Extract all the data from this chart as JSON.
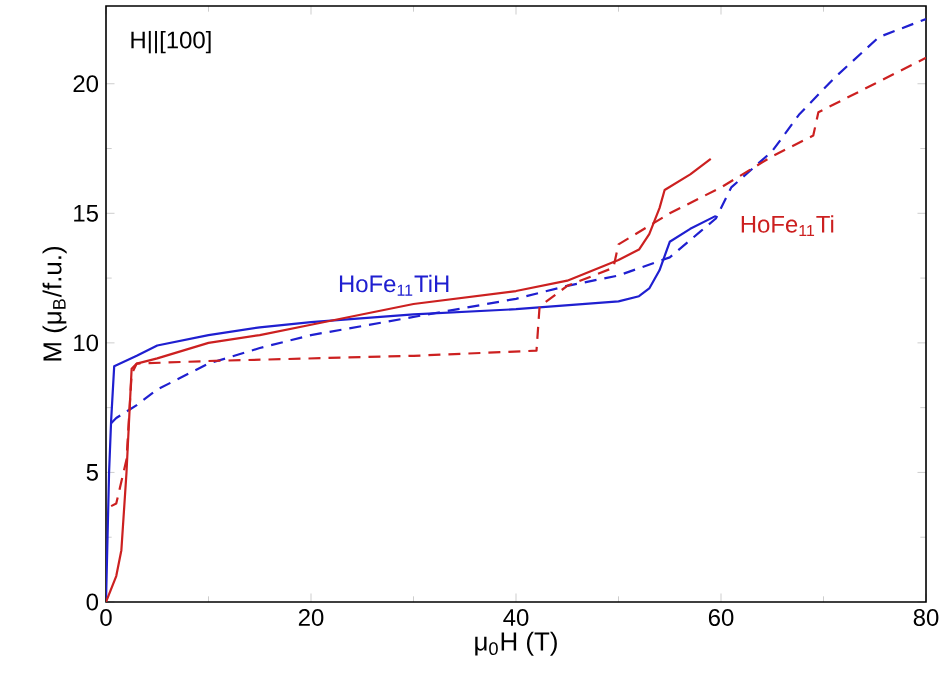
{
  "chart_data": {
    "type": "line",
    "xlabel": "μ$_{0}$H (T)",
    "ylabel": "M (μ$_{B}$/f.u.)",
    "xlim": [
      0,
      80
    ],
    "xticks": [
      0,
      20,
      40,
      60,
      80
    ],
    "ylim": [
      0,
      23
    ],
    "yticks": [
      0,
      5,
      10,
      15,
      20
    ],
    "grid": false,
    "legend": false,
    "marker": "none",
    "annotations": [
      "H||[100]"
    ],
    "series": [
      {
        "name": "HoFe$_{11}$TiH",
        "color": "#1f1fd0",
        "line_style": "solid",
        "x": [
          0,
          0.3,
          0.5,
          0.8,
          3,
          5,
          10,
          15,
          20,
          30,
          40,
          50,
          52,
          53,
          54,
          55,
          57,
          59.5
        ],
        "values": [
          0,
          5,
          7,
          9.1,
          9.5,
          9.9,
          10.3,
          10.6,
          10.8,
          11.1,
          11.3,
          11.6,
          11.8,
          12.1,
          12.8,
          13.9,
          14.4,
          14.9
        ]
      },
      {
        "color": "#1f1fd0",
        "line_style": "dashed",
        "x": [
          0.5,
          1,
          3,
          5,
          10,
          15,
          20,
          30,
          40,
          45,
          50,
          55,
          58,
          59.5,
          61,
          65,
          67.6,
          71,
          75.4,
          80
        ],
        "values": [
          6.9,
          7.1,
          7.6,
          8.2,
          9.2,
          9.8,
          10.3,
          11,
          11.7,
          12.2,
          12.6,
          13.3,
          14.3,
          14.8,
          16,
          17.4,
          18.8,
          20.2,
          21.8,
          22.5
        ]
      },
      {
        "name": "HoFe$_{11}$Ti",
        "color": "#cc2020",
        "line_style": "solid",
        "x": [
          0,
          1,
          1.5,
          2,
          2.5,
          3,
          5,
          10,
          15,
          20,
          30,
          40,
          45,
          50,
          52,
          53,
          54,
          54.5,
          57,
          59
        ],
        "values": [
          0,
          1,
          2,
          5,
          9,
          9.2,
          9.4,
          10,
          10.3,
          10.7,
          11.5,
          12,
          12.4,
          13.2,
          13.6,
          14.2,
          15.2,
          15.9,
          16.5,
          17.1
        ]
      },
      {
        "color": "#cc2020",
        "line_style": "dashed",
        "x": [
          0.5,
          1,
          2,
          2.5,
          3,
          10,
          20,
          30,
          42,
          42.3,
          45,
          49.5,
          50,
          55,
          60,
          65,
          69,
          69.5,
          75,
          80
        ],
        "values": [
          3.7,
          3.8,
          5.5,
          8.8,
          9.2,
          9.3,
          9.4,
          9.5,
          9.7,
          11.4,
          12.2,
          12.9,
          13.8,
          15,
          16,
          17.2,
          18,
          18.9,
          20,
          21
        ]
      }
    ]
  }
}
